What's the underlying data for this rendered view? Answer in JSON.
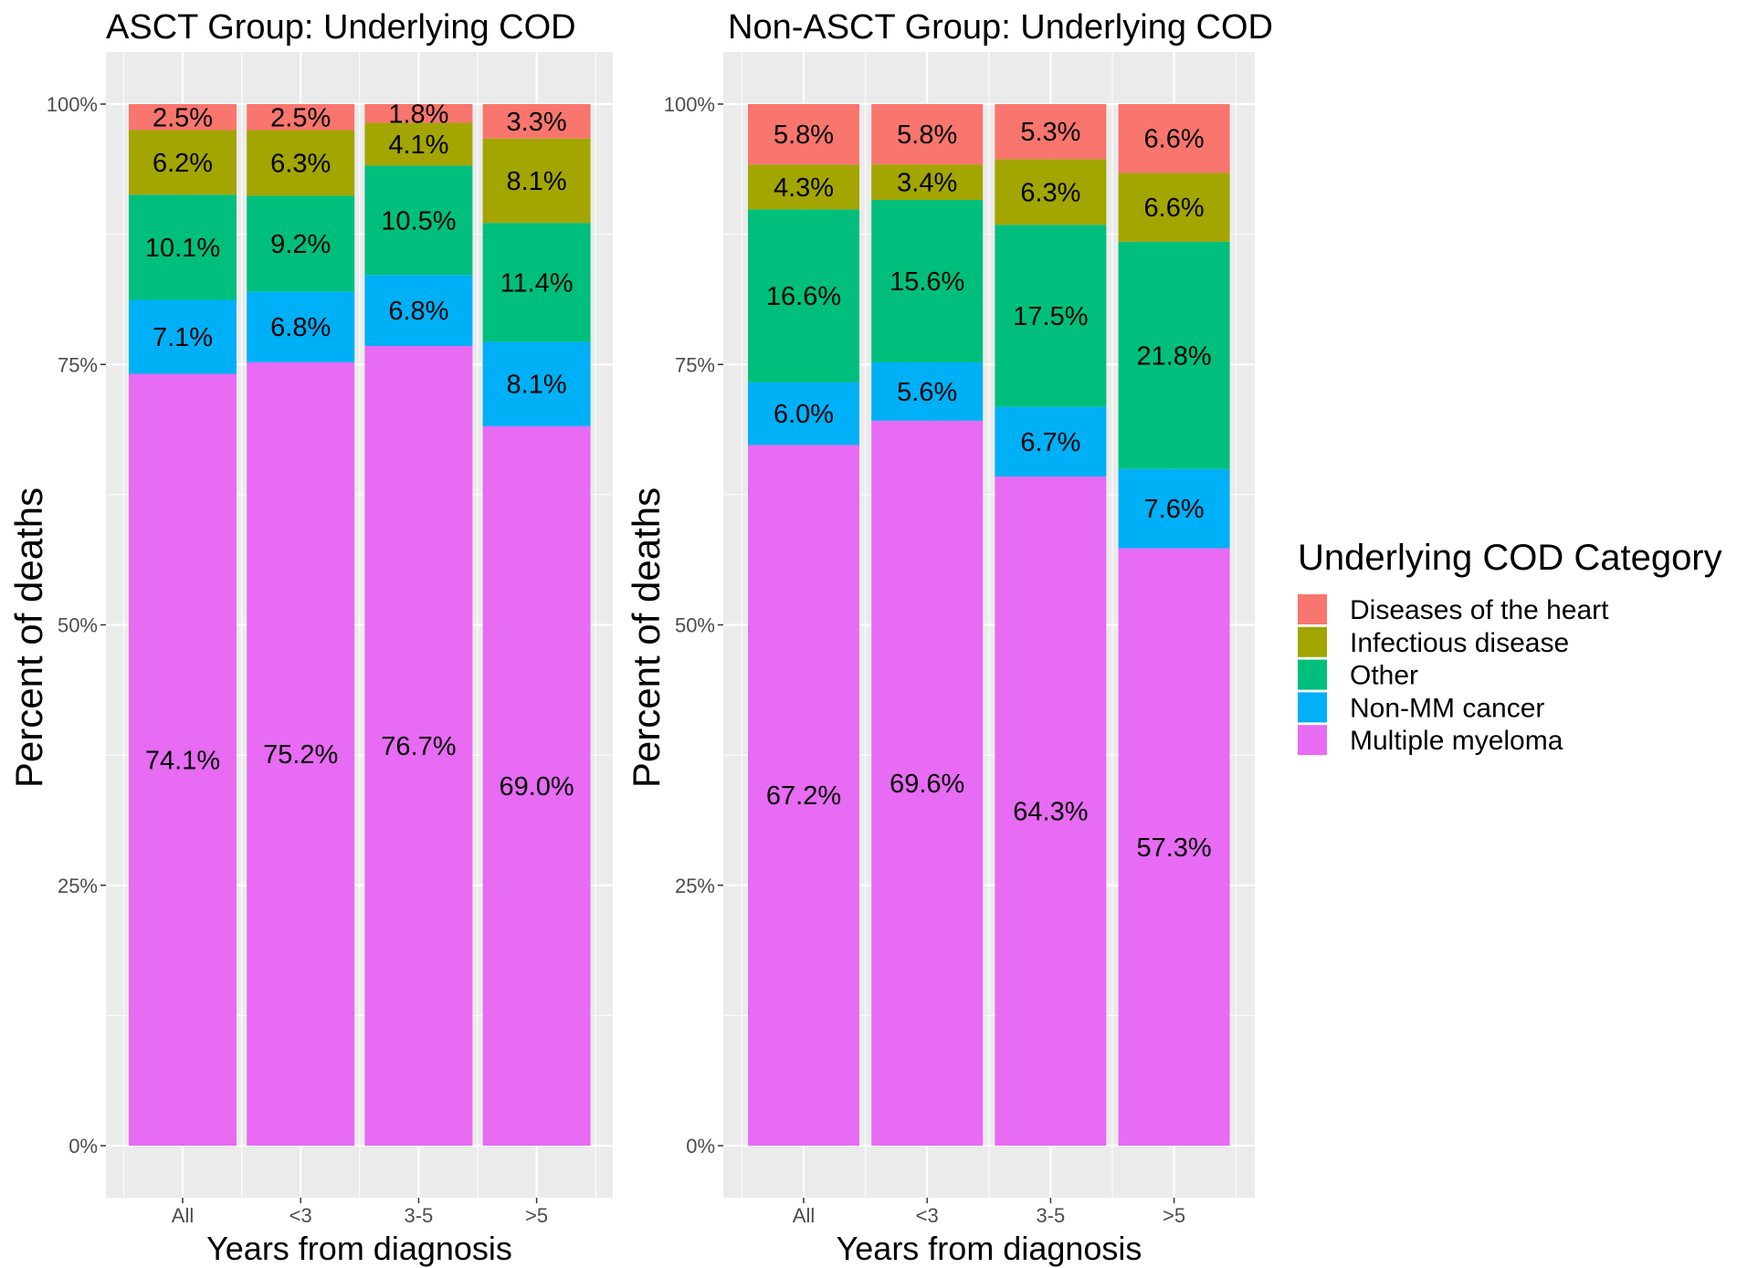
{
  "chart_data": [
    {
      "type": "bar",
      "stacked": true,
      "title": "ASCT Group: Underlying COD",
      "xlabel": "Years from diagnosis",
      "ylabel": "Percent of deaths",
      "ylim": [
        0,
        100
      ],
      "yticks": [
        "0%",
        "25%",
        "50%",
        "75%",
        "100%"
      ],
      "categories": [
        "All",
        "<3",
        "3-5",
        ">5"
      ],
      "series": [
        {
          "name": "Multiple myeloma",
          "values": [
            74.1,
            75.2,
            76.7,
            69.0
          ],
          "labels": [
            "74.1%",
            "75.2%",
            "76.7%",
            "69.0%"
          ]
        },
        {
          "name": "Non-MM cancer",
          "values": [
            7.1,
            6.8,
            6.8,
            8.1
          ],
          "labels": [
            "7.1%",
            "6.8%",
            "6.8%",
            "8.1%"
          ]
        },
        {
          "name": "Other",
          "values": [
            10.1,
            9.2,
            10.5,
            11.4
          ],
          "labels": [
            "10.1%",
            "9.2%",
            "10.5%",
            "11.4%"
          ]
        },
        {
          "name": "Infectious disease",
          "values": [
            6.2,
            6.3,
            4.1,
            8.1
          ],
          "labels": [
            "6.2%",
            "6.3%",
            "4.1%",
            "8.1%"
          ]
        },
        {
          "name": "Diseases of the heart",
          "values": [
            2.5,
            2.5,
            1.8,
            3.3
          ],
          "labels": [
            "2.5%",
            "2.5%",
            "1.8%",
            "3.3%"
          ]
        }
      ],
      "grid": true
    },
    {
      "type": "bar",
      "stacked": true,
      "title": "Non-ASCT Group: Underlying COD",
      "xlabel": "Years from diagnosis",
      "ylabel": "Percent of deaths",
      "ylim": [
        0,
        100
      ],
      "yticks": [
        "0%",
        "25%",
        "50%",
        "75%",
        "100%"
      ],
      "categories": [
        "All",
        "<3",
        "3-5",
        ">5"
      ],
      "series": [
        {
          "name": "Multiple myeloma",
          "values": [
            67.2,
            69.6,
            64.3,
            57.3
          ],
          "labels": [
            "67.2%",
            "69.6%",
            "64.3%",
            "57.3%"
          ]
        },
        {
          "name": "Non-MM cancer",
          "values": [
            6.0,
            5.6,
            6.7,
            7.6
          ],
          "labels": [
            "6.0%",
            "5.6%",
            "6.7%",
            "7.6%"
          ]
        },
        {
          "name": "Other",
          "values": [
            16.6,
            15.6,
            17.5,
            21.8
          ],
          "labels": [
            "16.6%",
            "15.6%",
            "17.5%",
            "21.8%"
          ]
        },
        {
          "name": "Infectious disease",
          "values": [
            4.3,
            3.4,
            6.3,
            6.6
          ],
          "labels": [
            "4.3%",
            "3.4%",
            "6.3%",
            "6.6%"
          ]
        },
        {
          "name": "Diseases of the heart",
          "values": [
            5.8,
            5.8,
            5.3,
            6.6
          ],
          "labels": [
            "5.8%",
            "5.8%",
            "5.3%",
            "6.6%"
          ]
        }
      ],
      "grid": true
    }
  ],
  "legend": {
    "title": "Underlying COD Category",
    "placement": "right",
    "items": [
      {
        "name": "Diseases of the heart",
        "color": "#F8766D"
      },
      {
        "name": "Infectious disease",
        "color": "#A3A500"
      },
      {
        "name": "Other",
        "color": "#00BF7D"
      },
      {
        "name": "Non-MM cancer",
        "color": "#00B0F6"
      },
      {
        "name": "Multiple myeloma",
        "color": "#E76BF3"
      }
    ]
  },
  "colors": {
    "panel_bg": "#EBEBEB",
    "grid": "#FFFFFF",
    "tick_text": "#4D4D4D"
  }
}
